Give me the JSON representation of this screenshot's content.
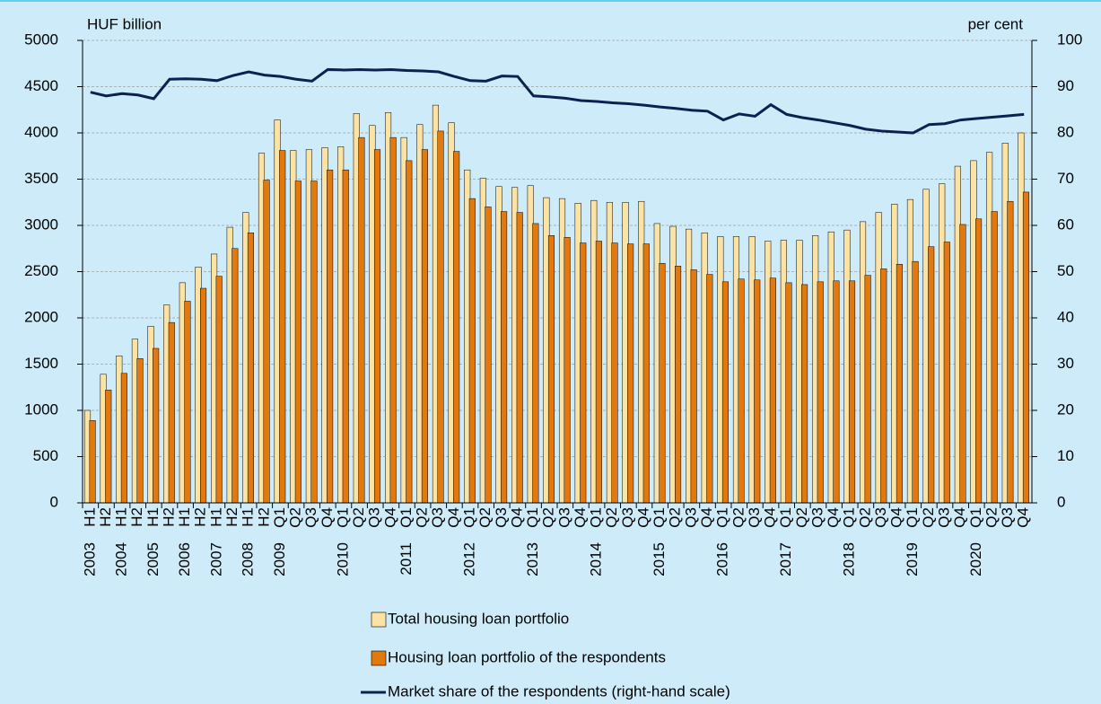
{
  "chart_data": {
    "type": "bar",
    "y_label": "HUF billion",
    "y2_label": "per cent",
    "categories": [
      "H1",
      "H2",
      "H1",
      "H2",
      "H1",
      "H2",
      "H1",
      "H2",
      "H1",
      "H2",
      "H1",
      "H2",
      "Q1",
      "Q2",
      "Q3",
      "Q4",
      "Q1",
      "Q2",
      "Q3",
      "Q4",
      "Q1",
      "Q2",
      "Q3",
      "Q4",
      "Q1",
      "Q2",
      "Q3",
      "Q4",
      "Q1",
      "Q2",
      "Q3",
      "Q4",
      "Q1",
      "Q2",
      "Q3",
      "Q4",
      "Q1",
      "Q2",
      "Q3",
      "Q4",
      "Q1",
      "Q2",
      "Q3",
      "Q4",
      "Q1",
      "Q2",
      "Q3",
      "Q4",
      "Q1",
      "Q2",
      "Q3",
      "Q4",
      "Q1",
      "Q2",
      "Q3",
      "Q4",
      "Q1",
      "Q2",
      "Q3",
      "Q4"
    ],
    "category_years": [
      "2003",
      null,
      "2004",
      null,
      "2005",
      null,
      "2006",
      null,
      "2007",
      null,
      "2008",
      null,
      "2009",
      null,
      null,
      null,
      "2010",
      null,
      null,
      null,
      "2011",
      null,
      null,
      null,
      "2012",
      null,
      null,
      null,
      "2013",
      null,
      null,
      null,
      "2014",
      null,
      null,
      null,
      "2015",
      null,
      null,
      null,
      "2016",
      null,
      null,
      null,
      "2017",
      null,
      null,
      null,
      "2018",
      null,
      null,
      null,
      "2019",
      null,
      null,
      null,
      "2020",
      null,
      null,
      null
    ],
    "series": [
      {
        "name": "Total housing loan portfolio",
        "type": "bar",
        "color": "#fde3a3",
        "values": [
          1000,
          1390,
          1590,
          1770,
          1910,
          2140,
          2380,
          2550,
          2690,
          2980,
          3140,
          3780,
          4140,
          3810,
          3820,
          3840,
          3850,
          4210,
          4080,
          4220,
          3950,
          4090,
          4300,
          4110,
          3600,
          3510,
          3420,
          3410,
          3430,
          3300,
          3290,
          3240,
          3270,
          3250,
          3250,
          3260,
          3020,
          2990,
          2960,
          2920,
          2880,
          2880,
          2880,
          2830,
          2840,
          2840,
          2890,
          2930,
          2950,
          3040,
          3140,
          3230,
          3280,
          3390,
          3450,
          3640,
          3700,
          3790,
          3890,
          4000
        ]
      },
      {
        "name": "Housing loan portfolio of the respondents",
        "type": "bar",
        "color": "#e2790f",
        "values": [
          890,
          1220,
          1400,
          1560,
          1670,
          1950,
          2180,
          2320,
          2450,
          2750,
          2920,
          3490,
          3810,
          3480,
          3480,
          3600,
          3600,
          3950,
          3820,
          3950,
          3700,
          3820,
          4020,
          3800,
          3290,
          3200,
          3150,
          3140,
          3020,
          2890,
          2870,
          2810,
          2830,
          2810,
          2800,
          2800,
          2590,
          2560,
          2520,
          2470,
          2390,
          2420,
          2410,
          2430,
          2380,
          2360,
          2390,
          2400,
          2400,
          2460,
          2530,
          2580,
          2610,
          2770,
          2820,
          3010,
          3070,
          3150,
          3260,
          3360
        ]
      },
      {
        "name": "Market share of the respondents (right-hand scale)",
        "type": "line",
        "axis": "y2",
        "color": "#0d2150",
        "values": [
          88.8,
          88,
          88.5,
          88.2,
          87.4,
          91.6,
          91.7,
          91.6,
          91.3,
          92.4,
          93.2,
          92.5,
          92.2,
          91.6,
          91.2,
          93.7,
          93.6,
          93.7,
          93.6,
          93.7,
          93.5,
          93.4,
          93.2,
          92.2,
          91.3,
          91.2,
          92.3,
          92.2,
          88,
          87.8,
          87.5,
          87.0,
          86.8,
          86.5,
          86.3,
          86.0,
          85.6,
          85.3,
          84.9,
          84.7,
          82.8,
          84.1,
          83.6,
          86.1,
          84.0,
          83.3,
          82.8,
          82.2,
          81.6,
          80.8,
          80.4,
          80.2,
          80.0,
          81.8,
          82.0,
          82.8,
          83.1,
          83.4,
          83.7,
          84.0
        ]
      }
    ],
    "ylim": [
      0,
      5000
    ],
    "yticks": [
      0,
      500,
      1000,
      1500,
      2000,
      2500,
      3000,
      3500,
      4000,
      4500,
      5000
    ],
    "y2lim": [
      0,
      100
    ],
    "y2ticks": [
      0,
      10,
      20,
      30,
      40,
      50,
      60,
      70,
      80,
      90,
      100
    ],
    "grid": true
  }
}
